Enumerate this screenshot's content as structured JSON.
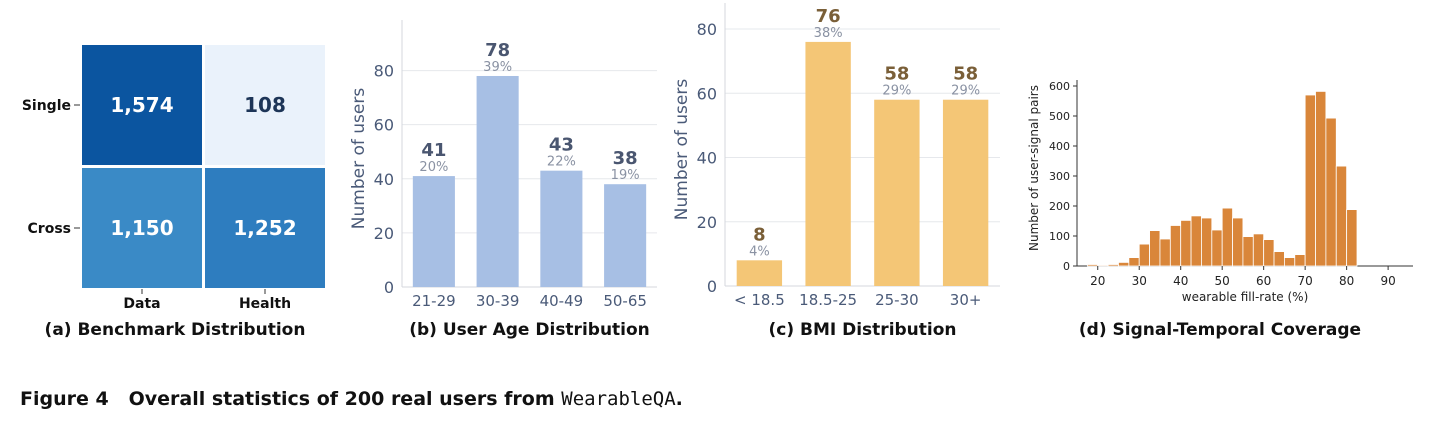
{
  "figure": {
    "caption_label": "Figure 4",
    "caption_text": "Overall statistics of 200 real users from ",
    "caption_dataset": "WearableQA",
    "caption_end": "."
  },
  "chart_data": [
    {
      "id": "a",
      "type": "heatmap",
      "caption": "(a) Benchmark Distribution",
      "rows": [
        "Single",
        "Cross"
      ],
      "columns": [
        "Data",
        "Health"
      ],
      "values": [
        [
          1574,
          108
        ],
        [
          1150,
          1252
        ]
      ],
      "value_labels": [
        [
          "1,574",
          "108"
        ],
        [
          "1,150",
          "1,252"
        ]
      ],
      "colors": [
        [
          "#0b55a0",
          "#eaf2fb"
        ],
        [
          "#3a8ac6",
          "#2e7dbf"
        ]
      ],
      "text_colors": [
        [
          "#ffffff",
          "#1d3557"
        ],
        [
          "#ffffff",
          "#ffffff"
        ]
      ]
    },
    {
      "id": "b",
      "type": "bar",
      "caption": "(b) User Age Distribution",
      "categories": [
        "21-29",
        "30-39",
        "40-49",
        "50-65"
      ],
      "values": [
        41,
        78,
        43,
        38
      ],
      "percent_labels": [
        "20%",
        "39%",
        "22%",
        "19%"
      ],
      "ylabel": "Number of users",
      "ylim": [
        0,
        95
      ],
      "yticks": [
        0,
        20,
        40,
        60,
        80
      ],
      "grid": true,
      "bar_color": "#a7bfe4",
      "value_color": "#4a5670",
      "percent_color": "#8a92a3",
      "axis_text_color": "#4a5a78"
    },
    {
      "id": "c",
      "type": "bar",
      "caption": "(c) BMI Distribution",
      "categories": [
        "< 18.5",
        "18.5-25",
        "25-30",
        "30+"
      ],
      "values": [
        8,
        76,
        58,
        58
      ],
      "percent_labels": [
        "4%",
        "38%",
        "29%",
        "29%"
      ],
      "ylabel": "Number of users",
      "ylim": [
        0,
        85
      ],
      "yticks": [
        0,
        20,
        40,
        60,
        80
      ],
      "grid": true,
      "bar_color": "#f4c676",
      "value_color": "#7a5f38",
      "percent_color": "#8a92a3",
      "axis_text_color": "#4a5a78"
    },
    {
      "id": "d",
      "type": "bar",
      "caption": "(d) Signal-Temporal Coverage",
      "histogram": true,
      "xlabel": "wearable fill-rate (%)",
      "ylabel": "Number of user-signal pairs",
      "bin_start": 17.5,
      "bin_width": 2.5,
      "values": [
        5,
        3,
        5,
        12,
        28,
        73,
        118,
        90,
        135,
        152,
        167,
        160,
        120,
        193,
        160,
        98,
        107,
        88,
        48,
        28,
        38,
        570,
        582,
        493,
        333,
        188
      ],
      "xlim": [
        15,
        96
      ],
      "ylim": [
        0,
        620
      ],
      "xticks": [
        20,
        30,
        40,
        50,
        60,
        70,
        80,
        90
      ],
      "yticks": [
        0,
        100,
        200,
        300,
        400,
        500,
        600
      ],
      "bar_color": "#d9863a"
    }
  ]
}
